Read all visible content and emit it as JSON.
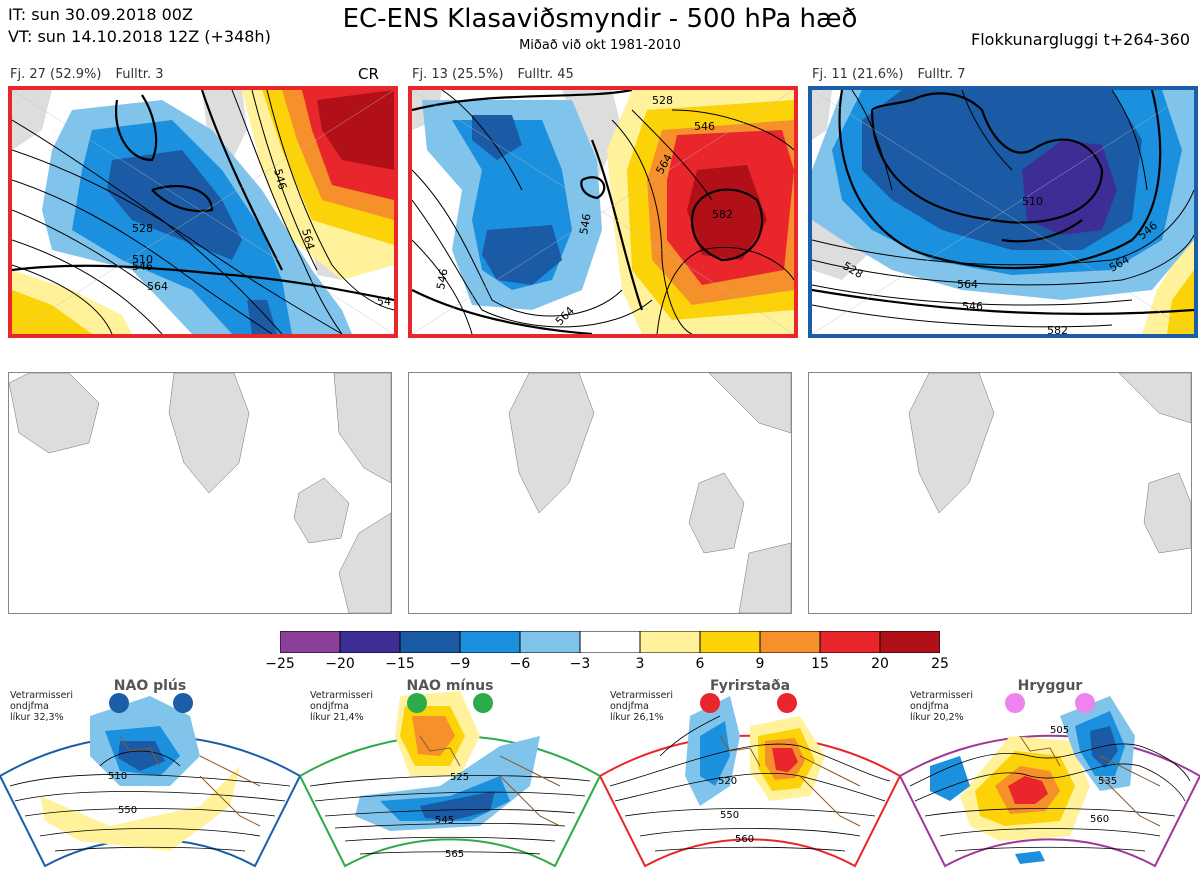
{
  "header": {
    "it_line": "IT: sun 30.09.2018 00Z",
    "vt_line": "VT: sun 14.10.2018 12Z  (+348h)",
    "title": "EC-ENS Klasaviðsmyndir - 500 hPa hæð",
    "subtitle": "Miðað við okt 1981-2010",
    "window": "Flokkunargluggi t+264-360"
  },
  "clusters": [
    {
      "count": "Fj. 27 (52.9%)",
      "rep": "Fulltr. 3",
      "tag": "CR",
      "frame_color": "#e8262b",
      "contours": [
        "510",
        "528",
        "546",
        "564",
        "546",
        "564",
        "54"
      ]
    },
    {
      "count": "Fj. 13 (25.5%)",
      "rep": "Fulltr. 45",
      "tag": "",
      "frame_color": "#e8262b",
      "contours": [
        "528",
        "546",
        "564",
        "582",
        "546",
        "546",
        "564"
      ]
    },
    {
      "count": "Fj. 11 (21.6%)",
      "rep": "Fulltr. 7",
      "tag": "",
      "frame_color": "#1a5ea8",
      "contours": [
        "510",
        "528",
        "546",
        "564",
        "546",
        "582",
        "564"
      ]
    }
  ],
  "colorbar": {
    "ticks": [
      "−25",
      "−20",
      "−15",
      "−9",
      "−6",
      "−3",
      "3",
      "6",
      "9",
      "15",
      "20",
      "25"
    ],
    "colors": [
      "#8b3f98",
      "#3d2e96",
      "#1b5aa5",
      "#1b90de",
      "#80c4ec",
      "#ffffff",
      "#fff29a",
      "#fcd209",
      "#f6902a",
      "#e8262b",
      "#b21019"
    ]
  },
  "regimes": [
    {
      "name": "NAO plús",
      "info": [
        "Vetrarmisseri",
        "ondjfma",
        "líkur 32,3%"
      ],
      "color": "#1a5ea8",
      "contours": [
        "510",
        "550"
      ]
    },
    {
      "name": "NAO mínus",
      "info": [
        "Vetrarmisseri",
        "ondjfma",
        "líkur 21,4%"
      ],
      "color": "#2bab4a",
      "contours": [
        "525",
        "545",
        "565"
      ]
    },
    {
      "name": "Fyrirstaða",
      "info": [
        "Vetrarmisseri",
        "ondjfma",
        "líkur 26,1%"
      ],
      "color": "#e8262b",
      "contours": [
        "520",
        "550",
        "560"
      ]
    },
    {
      "name": "Hryggur",
      "info": [
        "Vetrarmisseri",
        "ondjfma",
        "líkur 20,2%"
      ],
      "color": "#a03896",
      "dot_color": "#ee82ee",
      "contours": [
        "505",
        "535",
        "560"
      ]
    }
  ]
}
